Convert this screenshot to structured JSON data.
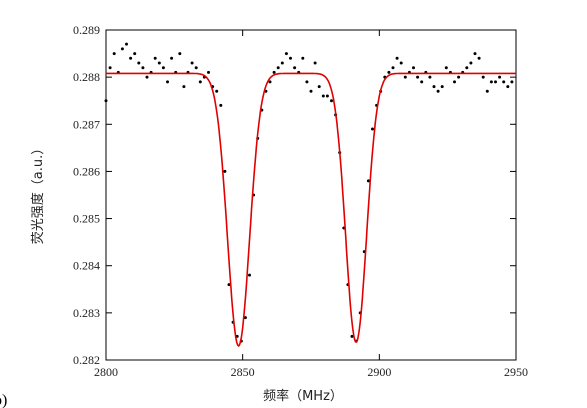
{
  "panel_tag": "b)",
  "chart_data": {
    "type": "scatter",
    "title": "",
    "xlabel": "频率（MHz）",
    "ylabel": "荧光强度（a.u.）",
    "xlim": [
      2800,
      2950
    ],
    "ylim": [
      0.282,
      0.289
    ],
    "xticks": [
      "2800",
      "2850",
      "2900",
      "2950"
    ],
    "yticks": [
      "0.282",
      "0.283",
      "0.284",
      "0.285",
      "0.286",
      "0.287",
      "0.288",
      "0.289"
    ],
    "grid": false,
    "legend": "none",
    "series": [
      {
        "kind": "points",
        "color": "#000000",
        "x": [
          2800,
          2801.5,
          2803,
          2804.5,
          2806,
          2807.5,
          2809,
          2810.5,
          2812,
          2813.5,
          2815,
          2816.5,
          2818,
          2819.5,
          2821,
          2822.5,
          2824,
          2825.5,
          2827,
          2828.5,
          2830,
          2831.5,
          2833,
          2834.5,
          2836,
          2837.5,
          2839,
          2840.5,
          2842,
          2843.5,
          2845,
          2846.5,
          2848,
          2849.5,
          2851,
          2852.5,
          2854,
          2855.5,
          2857,
          2858.5,
          2860,
          2861.5,
          2863,
          2864.5,
          2866,
          2867.5,
          2869,
          2870.5,
          2872,
          2873.5,
          2875,
          2876.5,
          2878,
          2879.5,
          2881,
          2882.5,
          2884,
          2885.5,
          2887,
          2888.5,
          2890,
          2891.5,
          2893,
          2894.5,
          2896,
          2897.5,
          2899,
          2900.5,
          2902,
          2903.5,
          2905,
          2906.5,
          2908,
          2909.5,
          2911,
          2912.5,
          2914,
          2915.5,
          2917,
          2918.5,
          2920,
          2921.5,
          2923,
          2924.5,
          2926,
          2927.5,
          2929,
          2930.5,
          2932,
          2933.5,
          2935,
          2936.5,
          2938,
          2939.5,
          2941,
          2942.5,
          2944,
          2945.5,
          2947,
          2948.5
        ],
        "y": [
          0.2875,
          0.2882,
          0.2885,
          0.2881,
          0.2886,
          0.2887,
          0.2884,
          0.2885,
          0.2883,
          0.2882,
          0.288,
          0.2881,
          0.2884,
          0.2883,
          0.2882,
          0.2879,
          0.2884,
          0.2881,
          0.2885,
          0.2878,
          0.2881,
          0.2883,
          0.2882,
          0.2879,
          0.288,
          0.2881,
          0.2878,
          0.2877,
          0.2874,
          0.286,
          0.2836,
          0.2828,
          0.2825,
          0.2824,
          0.2829,
          0.2838,
          0.2855,
          0.2867,
          0.2873,
          0.2877,
          0.2879,
          0.2881,
          0.2882,
          0.2883,
          0.2885,
          0.2884,
          0.2882,
          0.2881,
          0.2884,
          0.2879,
          0.2877,
          0.2883,
          0.2878,
          0.2876,
          0.2876,
          0.2875,
          0.2872,
          0.2864,
          0.2848,
          0.2836,
          0.2825,
          0.2824,
          0.283,
          0.2843,
          0.2858,
          0.2869,
          0.2874,
          0.2877,
          0.288,
          0.2881,
          0.2882,
          0.2884,
          0.2883,
          0.288,
          0.2881,
          0.2882,
          0.288,
          0.2879,
          0.2881,
          0.288,
          0.2878,
          0.2877,
          0.2878,
          0.2882,
          0.2881,
          0.2879,
          0.288,
          0.2881,
          0.2882,
          0.2883,
          0.2885,
          0.2884,
          0.288,
          0.2877,
          0.2879,
          0.2879,
          0.288,
          0.2879,
          0.2878,
          0.2879
        ]
      },
      {
        "kind": "fit",
        "color": "#e10000",
        "baseline": 0.28808,
        "dips": [
          {
            "center": 2848.5,
            "depth": 0.00578,
            "fwhm": 9.5
          },
          {
            "center": 2891.5,
            "depth": 0.0057,
            "fwhm": 9.0
          }
        ]
      }
    ]
  }
}
